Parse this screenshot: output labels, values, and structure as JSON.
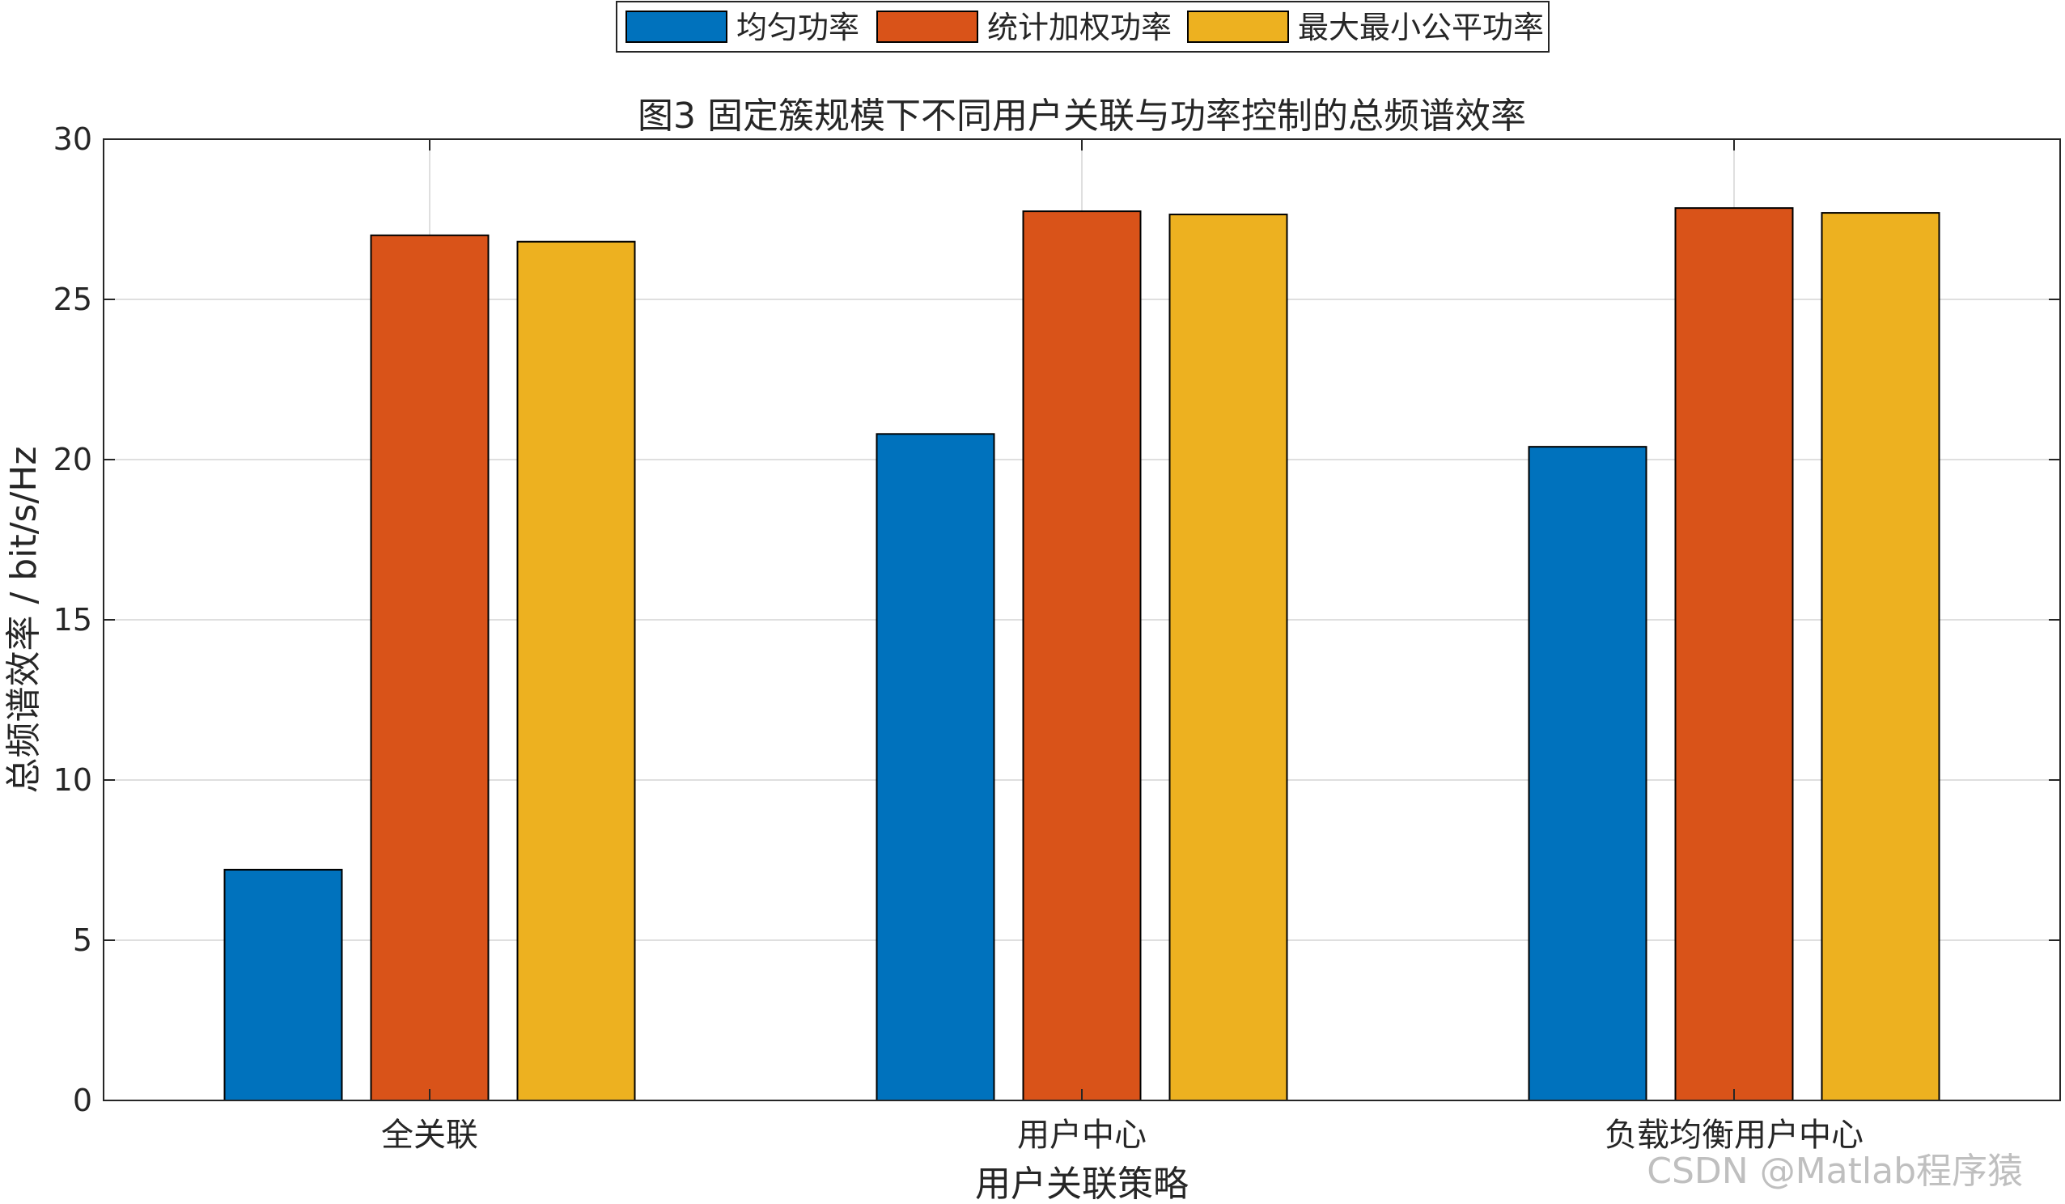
{
  "chart_data": {
    "type": "bar",
    "title": "图3 固定簇规模下不同用户关联与功率控制的总频谱效率",
    "xlabel": "用户关联策略",
    "ylabel": "总频谱效率 / bit/s/Hz",
    "categories": [
      "全关联",
      "用户中心",
      "负载均衡用户中心"
    ],
    "series": [
      {
        "name": "均匀功率",
        "color": "#0072BD",
        "values": [
          7.2,
          20.8,
          20.4
        ]
      },
      {
        "name": "统计加权功率",
        "color": "#D95319",
        "values": [
          27.0,
          27.75,
          27.85
        ]
      },
      {
        "name": "最大最小公平功率",
        "color": "#EDB120",
        "values": [
          26.8,
          27.65,
          27.7
        ]
      }
    ],
    "ylim": [
      0,
      30
    ],
    "yticks": [
      0,
      5,
      10,
      15,
      20,
      25,
      30
    ],
    "grid": true,
    "legend_position": "top-center"
  },
  "watermark": "CSDN @Matlab程序猿"
}
